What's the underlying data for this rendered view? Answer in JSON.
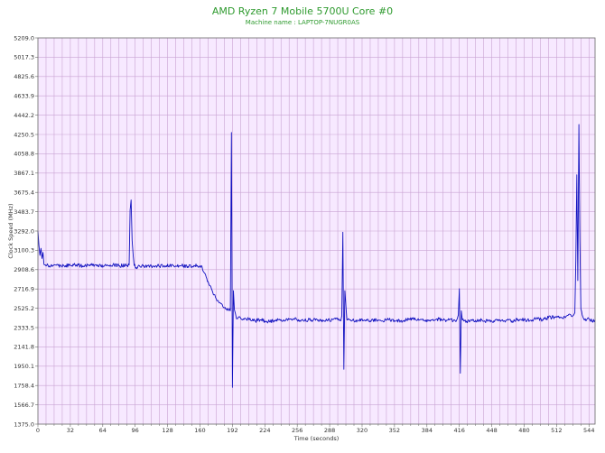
{
  "chart_data": {
    "type": "line",
    "title": "AMD Ryzen 7 Mobile 5700U Core #0",
    "subtitle": "Machine name : LAPTOP-7NUGR0AS",
    "xlabel": "Time (seconds)",
    "ylabel": "Clock Speed (MHz)",
    "xlim": [
      0,
      550
    ],
    "ylim": [
      1375.0,
      5209.0
    ],
    "x_ticks": [
      0,
      32,
      64,
      96,
      128,
      160,
      192,
      224,
      256,
      288,
      320,
      352,
      384,
      416,
      448,
      480,
      512,
      544
    ],
    "y_ticks": [
      "1375.0",
      "1566.7",
      "1758.4",
      "1950.1",
      "2141.8",
      "2333.5",
      "2525.2",
      "2716.9",
      "2908.6",
      "3100.3",
      "3292.0",
      "3483.7",
      "3675.4",
      "3867.1",
      "4058.8",
      "4250.5",
      "4442.2",
      "4633.9",
      "4825.6",
      "5017.3",
      "5209.0"
    ],
    "grid": true,
    "legend": "none",
    "background_color": "#f7e9ff",
    "grid_color": "#c9a3d3",
    "line_color": "#1010c0",
    "title_color": "#2e9a2e",
    "series": [
      {
        "x": [
          0,
          1,
          2,
          3,
          4,
          5,
          6,
          8,
          10,
          14,
          20,
          26,
          32,
          38,
          44,
          50,
          56,
          62,
          68,
          74,
          80,
          86,
          90,
          91,
          92,
          93,
          94,
          95,
          97,
          100,
          106,
          112,
          118,
          124,
          130,
          136,
          142,
          148,
          154,
          160,
          162,
          164,
          166,
          168,
          170,
          172,
          174,
          176,
          178,
          180,
          182,
          184,
          186,
          188,
          190,
          191,
          192,
          193,
          194,
          195,
          196,
          198,
          202,
          208,
          214,
          220,
          226,
          232,
          238,
          244,
          250,
          256,
          262,
          268,
          274,
          280,
          286,
          292,
          296,
          299,
          300,
          301,
          302,
          303,
          305,
          310,
          316,
          322,
          328,
          334,
          340,
          346,
          352,
          358,
          364,
          370,
          376,
          382,
          388,
          394,
          400,
          406,
          412,
          414,
          415,
          416,
          417,
          418,
          419,
          421,
          426,
          432,
          438,
          444,
          450,
          456,
          462,
          468,
          474,
          480,
          486,
          492,
          498,
          504,
          510,
          516,
          522,
          526,
          528,
          529,
          530,
          531,
          532,
          533,
          534,
          535,
          536,
          538,
          541,
          544,
          547,
          550
        ],
        "y": [
          3292.0,
          3150.0,
          3050.0,
          3120.0,
          3020.0,
          3080.0,
          2960.0,
          2945.0,
          2950.0,
          2940.0,
          2950.0,
          2945.0,
          2950.0,
          2955.0,
          2945.0,
          2950.0,
          2955.0,
          2945.0,
          2950.0,
          2955.0,
          2945.0,
          2950.0,
          2955.0,
          3500.0,
          3600.0,
          3200.0,
          3050.0,
          2950.0,
          2930.0,
          2950.0,
          2940.0,
          2945.0,
          2950.0,
          2940.0,
          2950.0,
          2945.0,
          2950.0,
          2940.0,
          2950.0,
          2945.0,
          2940.0,
          2880.0,
          2840.0,
          2790.0,
          2750.0,
          2700.0,
          2660.0,
          2620.0,
          2600.0,
          2580.0,
          2560.0,
          2530.0,
          2520.0,
          2510.0,
          2500.0,
          4270.0,
          1740.0,
          2700.0,
          2510.0,
          2470.0,
          2420.0,
          2440.0,
          2410.0,
          2420.0,
          2400.0,
          2410.0,
          2395.0,
          2400.0,
          2410.0,
          2400.0,
          2420.0,
          2410.0,
          2400.0,
          2415.0,
          2405.0,
          2410.0,
          2400.0,
          2420.0,
          2410.0,
          2400.0,
          2450.0,
          3280.0,
          1920.0,
          2700.0,
          2410.0,
          2400.0,
          2405.0,
          2410.0,
          2400.0,
          2415.0,
          2400.0,
          2410.0,
          2405.0,
          2400.0,
          2410.0,
          2420.0,
          2405.0,
          2400.0,
          2410.0,
          2420.0,
          2405.0,
          2410.0,
          2400.0,
          2420.0,
          2460.0,
          2720.0,
          1880.0,
          2500.0,
          2410.0,
          2400.0,
          2390.0,
          2405.0,
          2410.0,
          2395.0,
          2400.0,
          2410.0,
          2405.0,
          2400.0,
          2415.0,
          2410.0,
          2405.0,
          2420.0,
          2410.0,
          2430.0,
          2440.0,
          2430.0,
          2450.0,
          2460.0,
          2450.0,
          2460.0,
          2480.0,
          3000.0,
          3850.0,
          2800.0,
          4350.0,
          3200.0,
          2520.0,
          2440.0,
          2400.0,
          2420.0,
          2395.0,
          2410.0
        ]
      }
    ]
  }
}
